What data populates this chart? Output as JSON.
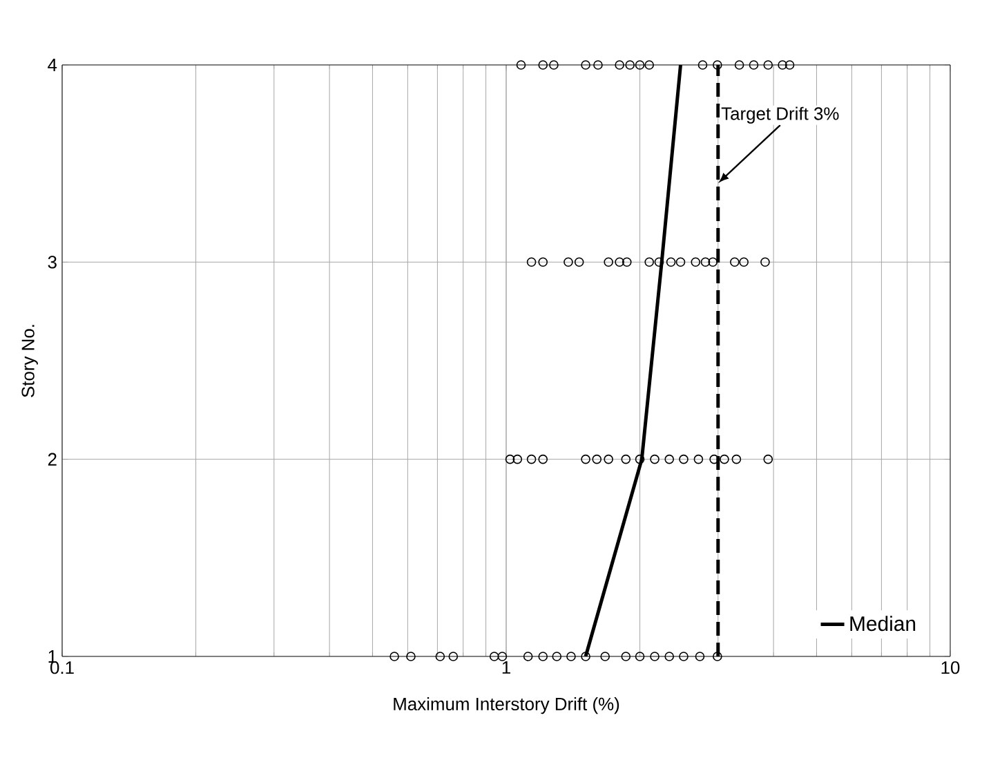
{
  "chart_data": {
    "type": "scatter",
    "xlabel": "Maximum Interstory Drift (%)",
    "ylabel": "Story No.",
    "log": "x",
    "xlim": [
      0.1,
      10
    ],
    "ylim": [
      1,
      4
    ],
    "xticks": [
      0.1,
      1,
      10
    ],
    "yticks": [
      1,
      2,
      3,
      4
    ],
    "grid": true,
    "legend": "bottom right",
    "series": [
      {
        "color": "#000000",
        "marker": "circle",
        "x": [
          0.56,
          0.61,
          0.71,
          0.76,
          0.94,
          0.98,
          1.12,
          1.21,
          1.3,
          1.4,
          1.51,
          1.67,
          1.86,
          2.0,
          2.16,
          2.33,
          2.51,
          2.73,
          2.99,
          1.02,
          1.06,
          1.14,
          1.21,
          1.51,
          1.6,
          1.7,
          1.86,
          2.0,
          2.16,
          2.33,
          2.51,
          2.71,
          2.94,
          3.1,
          3.3,
          3.89,
          1.14,
          1.21,
          1.38,
          1.46,
          1.7,
          1.8,
          1.87,
          2.1,
          2.21,
          2.35,
          2.47,
          2.67,
          2.81,
          2.92,
          3.27,
          3.43,
          3.83,
          1.08,
          1.21,
          1.28,
          1.51,
          1.61,
          1.8,
          1.9,
          2.0,
          2.1,
          2.77,
          2.99,
          3.35,
          3.61,
          3.89,
          4.19,
          4.35
        ],
        "values": [
          1,
          1,
          1,
          1,
          1,
          1,
          1,
          1,
          1,
          1,
          1,
          1,
          1,
          1,
          1,
          1,
          1,
          1,
          1,
          2,
          2,
          2,
          2,
          2,
          2,
          2,
          2,
          2,
          2,
          2,
          2,
          2,
          2,
          2,
          2,
          2,
          3,
          3,
          3,
          3,
          3,
          3,
          3,
          3,
          3,
          3,
          3,
          3,
          3,
          3,
          3,
          3,
          3,
          4,
          4,
          4,
          4,
          4,
          4,
          4,
          4,
          4,
          4,
          4,
          4,
          4,
          4,
          4,
          4
        ]
      },
      {
        "type": "line",
        "name": "Median",
        "color": "#000000",
        "marker": "none",
        "x": [
          1.51,
          2.02,
          2.24,
          2.47
        ],
        "values": [
          1,
          2,
          3,
          4
        ]
      }
    ],
    "ref_lines": [
      {
        "axis": "x",
        "value": 3,
        "line_style": "dashed",
        "color": "#000000"
      }
    ],
    "annotations": [
      {
        "text": "Target Drift 3%",
        "x": 3,
        "y": 3.4
      }
    ]
  }
}
